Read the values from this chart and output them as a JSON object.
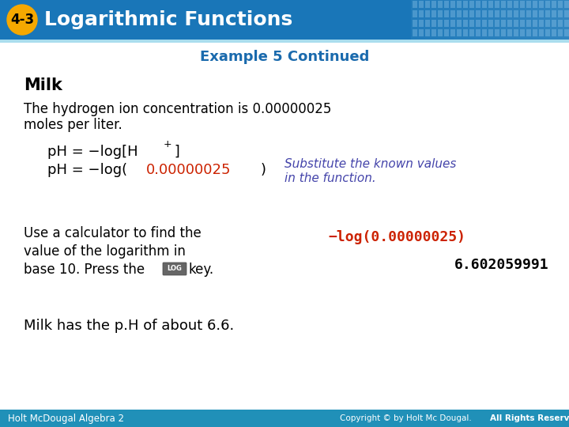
{
  "header_bg_color": "#1976b8",
  "header_text": "Logarithmic Functions",
  "badge_text": "4-3",
  "badge_bg": "#f5a800",
  "badge_text_color": "#000000",
  "header_text_color": "#ffffff",
  "subtitle": "Example 5 Continued",
  "subtitle_color": "#1a6aad",
  "section_title": "Milk",
  "body_text_color": "#000000",
  "red_color": "#cc2200",
  "italic_color": "#4444aa",
  "calc_text1_color": "#cc2200",
  "calc_text2_color": "#000000",
  "footer_bg": "#2090b8",
  "footer_left": "Holt McDougal Algebra 2",
  "footer_right": "Copyright © by Holt Mc Dougal. All Rights Reserved.",
  "footer_text_color": "#ffffff",
  "grid_color": "#5599cc"
}
